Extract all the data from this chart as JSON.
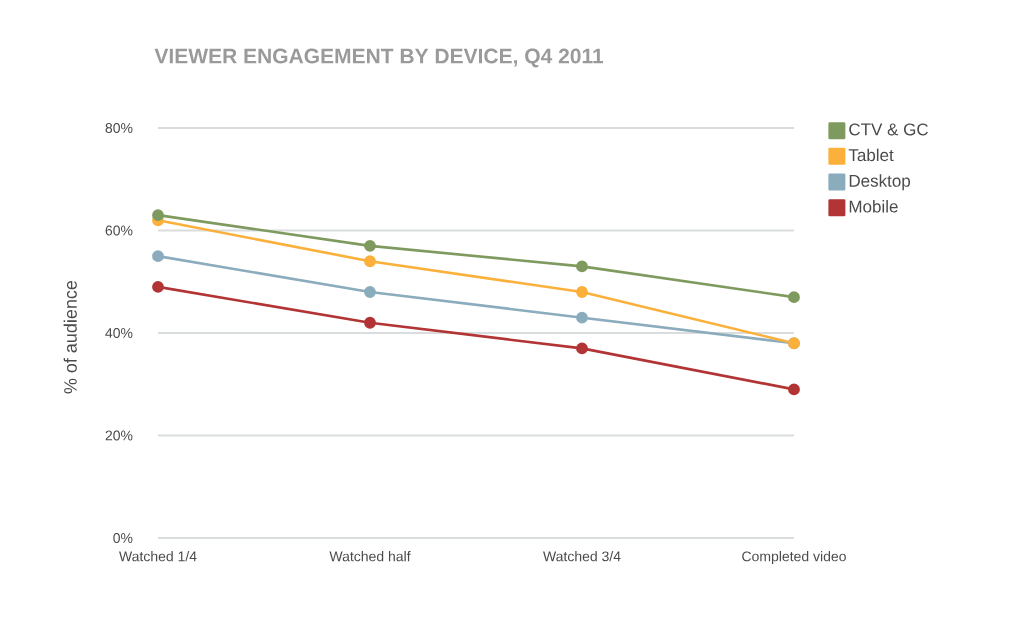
{
  "chart_data": {
    "type": "line",
    "title": "VIEWER ENGAGEMENT BY DEVICE, Q4 2011",
    "ylabel": "% of audience",
    "categories": [
      "Watched 1/4",
      "Watched half",
      "Watched 3/4",
      "Completed video"
    ],
    "series": [
      {
        "name": "CTV & GC",
        "color": "#7f9a5f",
        "values": [
          63,
          57,
          53,
          47
        ]
      },
      {
        "name": "Tablet",
        "color": "#fbb03b",
        "values": [
          62,
          54,
          48,
          38
        ]
      },
      {
        "name": "Desktop",
        "color": "#8aacbd",
        "values": [
          55,
          48,
          43,
          38
        ]
      },
      {
        "name": "Mobile",
        "color": "#b23434",
        "values": [
          49,
          42,
          37,
          29
        ]
      }
    ],
    "ylim": [
      0,
      80
    ],
    "yticks": [
      {
        "value": 0,
        "label": "0%"
      },
      {
        "value": 20,
        "label": "20%"
      },
      {
        "value": 40,
        "label": "40%"
      },
      {
        "value": 60,
        "label": "60%"
      },
      {
        "value": 80,
        "label": "80%"
      }
    ],
    "grid": "y",
    "legend": "top right",
    "marker": "circle",
    "line_style": "solid"
  }
}
